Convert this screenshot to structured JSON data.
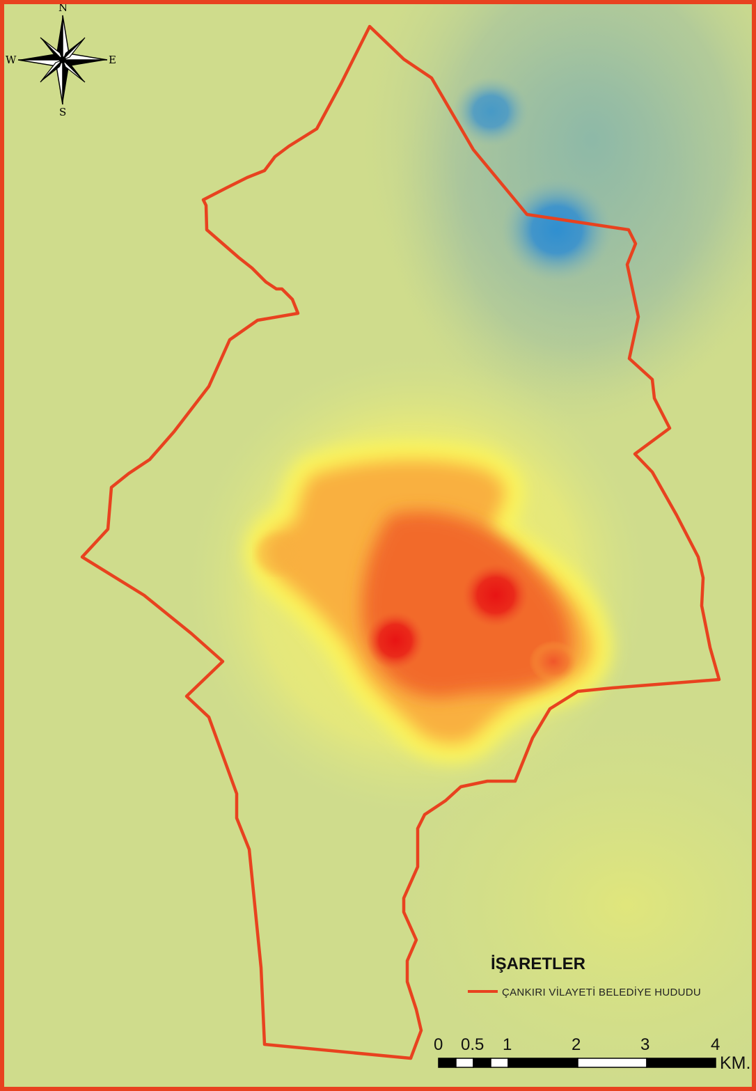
{
  "compass": {
    "north": "N",
    "south": "S",
    "east": "E",
    "west": "W",
    "icon": "north-arrow-compass-rose"
  },
  "legend": {
    "title": "İŞARETLER",
    "items": [
      {
        "label": "ÇANKIRI VİLAYETİ BELEDİYE HUDUDU",
        "color": "#e8421f",
        "symbol": "line"
      }
    ]
  },
  "scale_bar": {
    "ticks": [
      "0",
      "0.5",
      "1",
      "2",
      "3",
      "4"
    ],
    "unit": "KM."
  },
  "colors": {
    "border": "#e8421f",
    "background": "#cfdc8c",
    "boundary": "#e8421f",
    "hotspot": "#e81414",
    "coldspot": "#2f8fd0"
  }
}
